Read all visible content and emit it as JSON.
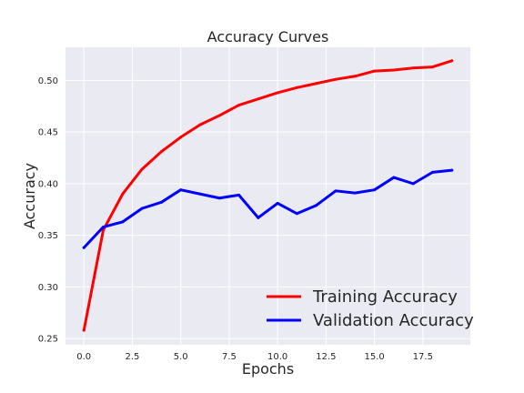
{
  "chart_data": {
    "type": "line",
    "title": "Accuracy Curves",
    "xlabel": "Epochs",
    "ylabel": "Accuracy",
    "x": [
      0,
      1,
      2,
      3,
      4,
      5,
      6,
      7,
      8,
      9,
      10,
      11,
      12,
      13,
      14,
      15,
      16,
      17,
      18,
      19
    ],
    "xlim": [
      -0.95,
      19.95
    ],
    "ylim": [
      0.244,
      0.532
    ],
    "xticks": [
      0.0,
      2.5,
      5.0,
      7.5,
      10.0,
      12.5,
      15.0,
      17.5
    ],
    "xtick_labels": [
      "0.0",
      "2.5",
      "5.0",
      "7.5",
      "10.0",
      "12.5",
      "15.0",
      "17.5"
    ],
    "yticks": [
      0.25,
      0.3,
      0.35,
      0.4,
      0.45,
      0.5
    ],
    "ytick_labels": [
      "0.25",
      "0.30",
      "0.35",
      "0.40",
      "0.45",
      "0.50"
    ],
    "grid": true,
    "background": "#eaeaf2",
    "legend_position": "bottom-right",
    "series": [
      {
        "name": "Training Accuracy",
        "color": "#ff0000",
        "values": [
          0.258,
          0.355,
          0.39,
          0.414,
          0.431,
          0.445,
          0.457,
          0.466,
          0.476,
          0.482,
          0.488,
          0.493,
          0.497,
          0.501,
          0.504,
          0.509,
          0.51,
          0.512,
          0.513,
          0.519
        ]
      },
      {
        "name": "Validation Accuracy",
        "color": "#0000ff",
        "values": [
          0.338,
          0.358,
          0.363,
          0.376,
          0.382,
          0.394,
          0.39,
          0.386,
          0.389,
          0.367,
          0.381,
          0.371,
          0.379,
          0.393,
          0.391,
          0.394,
          0.406,
          0.4,
          0.411,
          0.413
        ]
      }
    ]
  }
}
